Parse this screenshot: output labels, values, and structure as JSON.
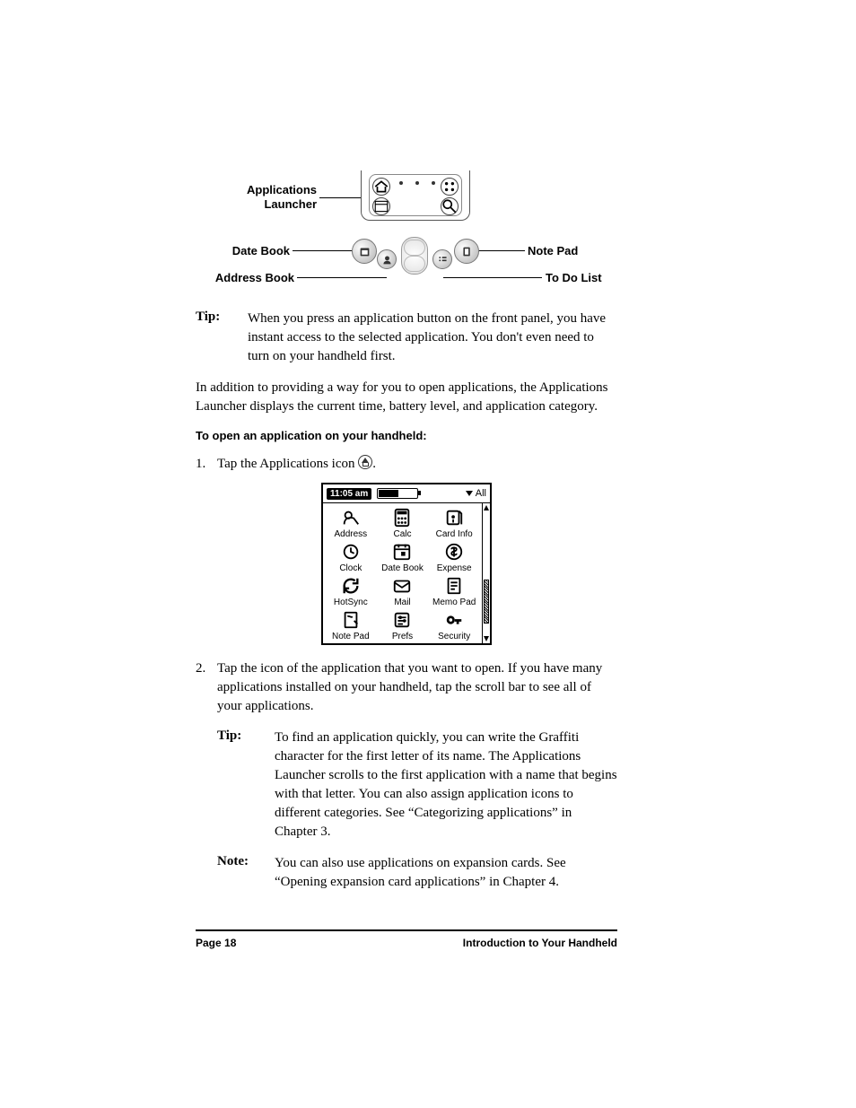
{
  "diagram": {
    "labels": {
      "app_launcher_l1": "Applications",
      "app_launcher_l2": "Launcher",
      "date_book": "Date Book",
      "address_book": "Address Book",
      "note_pad": "Note Pad",
      "to_do_list": "To Do List"
    }
  },
  "tip1": {
    "label": "Tip:",
    "text": "When you press an application button on the front panel, you have instant access to the selected application. You don't even need to turn on your handheld first."
  },
  "para1": "In addition to providing a way for you to open applications, the Applications Launcher displays the current time, battery level, and application category.",
  "proc_heading": "To open an application on your handheld:",
  "step1": {
    "num": "1.",
    "text_a": "Tap the Applications icon ",
    "text_b": "."
  },
  "launcher": {
    "time": "11:05 am",
    "category": "All",
    "apps": [
      {
        "label": "Address",
        "icon": "address"
      },
      {
        "label": "Calc",
        "icon": "calc"
      },
      {
        "label": "Card Info",
        "icon": "cardinfo"
      },
      {
        "label": "Clock",
        "icon": "clock"
      },
      {
        "label": "Date Book",
        "icon": "datebook"
      },
      {
        "label": "Expense",
        "icon": "expense"
      },
      {
        "label": "HotSync",
        "icon": "hotsync"
      },
      {
        "label": "Mail",
        "icon": "mail"
      },
      {
        "label": "Memo Pad",
        "icon": "memopad"
      },
      {
        "label": "Note Pad",
        "icon": "notepad"
      },
      {
        "label": "Prefs",
        "icon": "prefs"
      },
      {
        "label": "Security",
        "icon": "security"
      }
    ]
  },
  "step2": {
    "num": "2.",
    "text": "Tap the icon of the application that you want to open. If you have many applications installed on your handheld, tap the scroll bar to see all of your applications."
  },
  "tip2": {
    "label": "Tip:",
    "text": "To find an application quickly, you can write the Graffiti character for the first letter of its name. The Applications Launcher scrolls to the first application with a name that begins with that letter. You can also assign application icons to different categories. See “Categorizing applications” in Chapter 3."
  },
  "note1": {
    "label": "Note:",
    "text": "You can also use applications on expansion cards. See “Opening expansion card applications” in Chapter 4."
  },
  "footer": {
    "page": "Page 18",
    "section": "Introduction to Your Handheld"
  }
}
